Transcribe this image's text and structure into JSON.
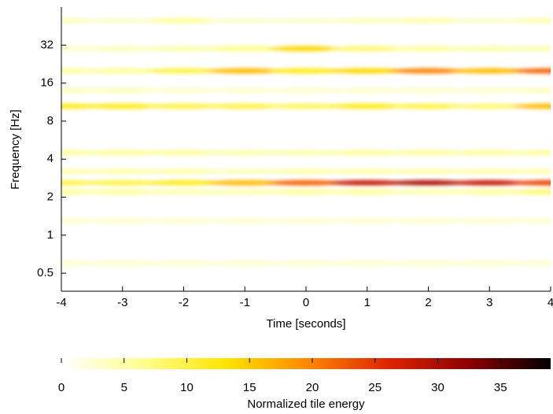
{
  "chart_data": {
    "type": "spectrogram",
    "xlabel": "Time [seconds]",
    "ylabel": "Frequency [Hz]",
    "xlim": [
      -4,
      4
    ],
    "xticks": [
      -4,
      -3,
      -2,
      -1,
      0,
      1,
      2,
      3,
      4
    ],
    "ylim": [
      0.36,
      64
    ],
    "yticks": [
      0.5,
      1,
      2,
      4,
      8,
      16,
      32
    ],
    "yscale": "log",
    "colorbar": {
      "label": "Normalized tile energy",
      "clim": [
        0,
        39
      ],
      "ticks": [
        0,
        5,
        10,
        15,
        20,
        25,
        30,
        35
      ],
      "colormap": [
        "#ffffff",
        "#ffff90",
        "#ffe600",
        "#ff8a00",
        "#e02400",
        "#8c0000",
        "#000000"
      ]
    },
    "x": [
      -4,
      -3,
      -2,
      -1,
      0,
      1,
      2,
      3,
      4
    ],
    "series": [
      {
        "frequency": 2.6,
        "values": [
          10,
          10,
          12,
          16,
          22,
          28,
          30,
          28,
          24
        ]
      },
      {
        "frequency": 20,
        "values": [
          6,
          6,
          10,
          16,
          12,
          14,
          20,
          16,
          22
        ]
      },
      {
        "frequency": 10.5,
        "values": [
          12,
          12,
          10,
          10,
          9,
          12,
          10,
          8,
          16
        ]
      },
      {
        "frequency": 30,
        "values": [
          3,
          4,
          5,
          7,
          14,
          8,
          6,
          5,
          5
        ]
      },
      {
        "frequency": 4.5,
        "values": [
          6,
          6,
          6,
          5,
          5,
          6,
          6,
          6,
          6
        ]
      },
      {
        "frequency": 3.2,
        "values": [
          5,
          5,
          5,
          4,
          5,
          5,
          5,
          5,
          5
        ]
      },
      {
        "frequency": 2.2,
        "values": [
          6,
          6,
          5,
          5,
          6,
          6,
          5,
          6,
          8
        ]
      },
      {
        "frequency": 1.3,
        "values": [
          3,
          3,
          3,
          3,
          3,
          3,
          3,
          3,
          3
        ]
      },
      {
        "frequency": 0.6,
        "values": [
          3,
          3,
          3,
          3,
          3,
          3,
          3,
          3,
          3
        ]
      },
      {
        "frequency": 50,
        "values": [
          4,
          3,
          6,
          3,
          3,
          4,
          5,
          3,
          5
        ]
      },
      {
        "frequency": 14,
        "values": [
          4,
          4,
          3,
          3,
          3,
          3,
          3,
          3,
          4
        ]
      }
    ]
  }
}
